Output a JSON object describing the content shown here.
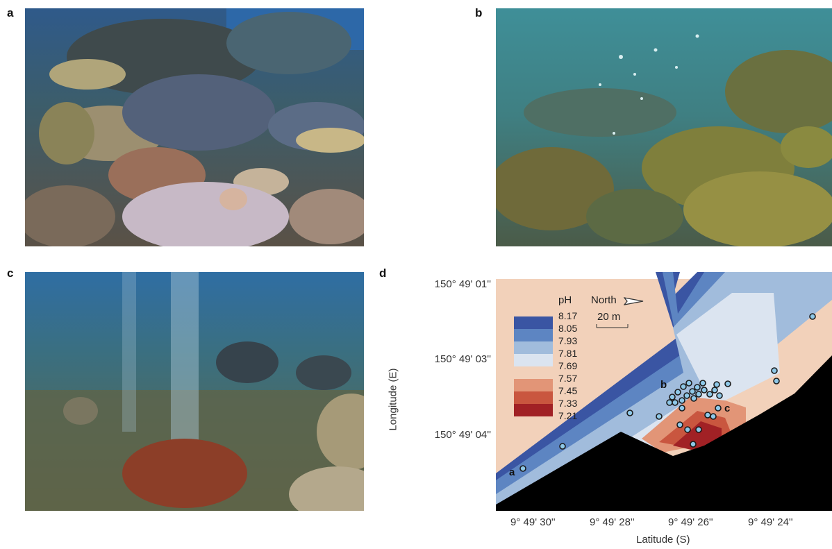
{
  "panels": {
    "a": {
      "letter": "a",
      "scene": "coral-reef"
    },
    "b": {
      "letter": "b",
      "scene": "bubbling-reef"
    },
    "c": {
      "letter": "c",
      "scene": "co2-seep"
    },
    "d": {
      "letter": "d",
      "scene": "ph-map"
    }
  },
  "map": {
    "legend_title": "pH",
    "north_label": "North",
    "scale_label": "20 m",
    "y_axis_title": "Longitude (E)",
    "x_axis_title": "Latitude (S)",
    "y_ticks": [
      "150° 49' 01''",
      "150° 49' 03''",
      "150° 49' 04''"
    ],
    "x_ticks": [
      "9° 49' 30''",
      "9° 49' 28''",
      "9° 49' 26''",
      "9° 49' 24''"
    ],
    "site_labels": [
      "a",
      "b",
      "c"
    ]
  },
  "chart_data": {
    "type": "heatmap",
    "title": "",
    "xlabel": "Latitude (S)",
    "ylabel": "Longitude (E)",
    "x_ticks": [
      "9° 49' 30''",
      "9° 49' 28''",
      "9° 49' 26''",
      "9° 49' 24''"
    ],
    "y_ticks": [
      "150° 49' 01''",
      "150° 49' 03''",
      "150° 49' 04''"
    ],
    "legend": {
      "title": "pH",
      "bin_edges": [
        "8.17",
        "8.05",
        "7.93",
        "7.81",
        "7.69",
        "7.57",
        "7.45",
        "7.33",
        "7.21"
      ],
      "bin_colors": [
        "#3a55a3",
        "#5d85c2",
        "#a1bcdc",
        "#dbe4f0",
        "#f2d1ba",
        "#e29577",
        "#c9563f",
        "#a12125"
      ],
      "placement": "top-left"
    },
    "land_color": "#000000"
  }
}
